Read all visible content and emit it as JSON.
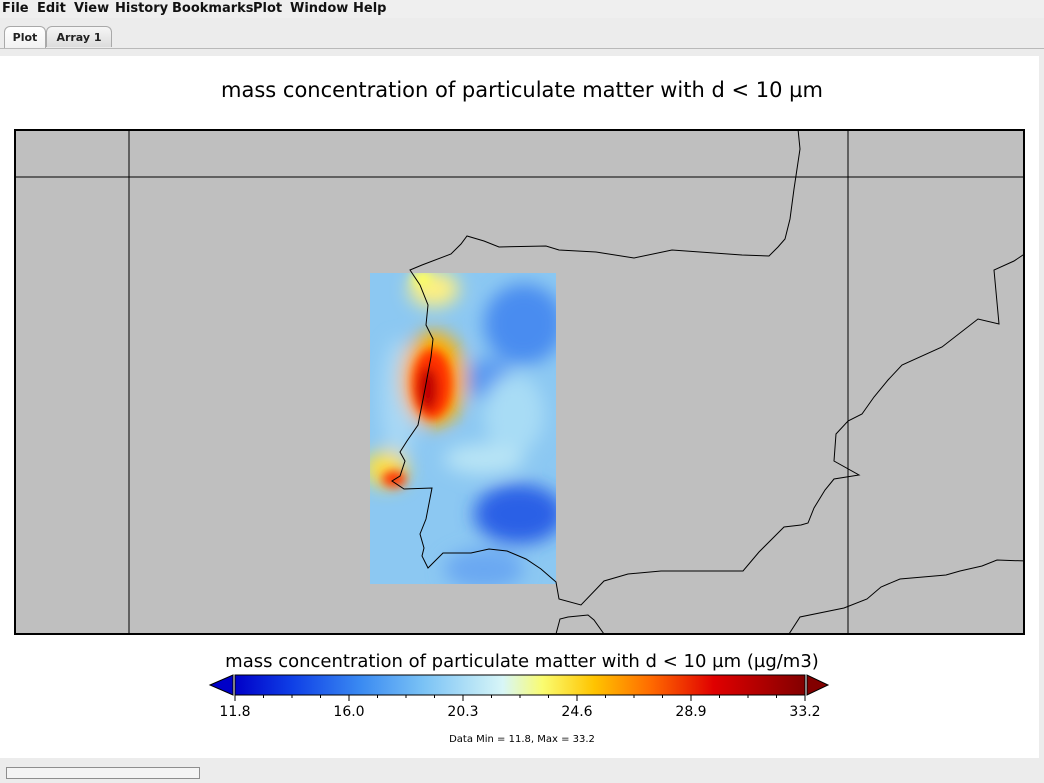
{
  "menubar": {
    "items": [
      "File",
      "Edit",
      "View",
      "History",
      "Bookmarks",
      "Plot",
      "Window",
      "Help"
    ]
  },
  "tabs": [
    {
      "label": "Plot",
      "active": true
    },
    {
      "label": "Array 1",
      "active": false
    }
  ],
  "plot": {
    "title": "mass concentration of particulate matter with d < 10 µm",
    "colorbar_title": "mass concentration of particulate matter with d < 10 µm (µg/m3)",
    "data_range_text": "Data Min = 11.8, Max = 33.2",
    "colors": {
      "land_background": "#bfbfbf",
      "coastline": "#000000",
      "colormap": [
        "#0000c8",
        "#1060f0",
        "#4aa0f5",
        "#a8dcf5",
        "#e8faf5",
        "#ffff40",
        "#ffb000",
        "#ff3000",
        "#d00000",
        "#820000"
      ]
    }
  },
  "chart_data": {
    "type": "heatmap",
    "title": "mass concentration of particulate matter with d < 10 µm",
    "colorbar": {
      "label": "mass concentration of particulate matter with d < 10 µm (µg/m3)",
      "ticks": [
        "11.8",
        "16.0",
        "20.3",
        "24.6",
        "28.9",
        "33.2"
      ],
      "min": 11.8,
      "max": 33.2,
      "extend": "both"
    },
    "data_min": 11.8,
    "data_max": 33.2,
    "hotspots": [
      {
        "region": "west-center",
        "value": 33.2
      },
      {
        "region": "south-west",
        "value": 30.0
      },
      {
        "region": "north-west",
        "value": 25.0
      }
    ],
    "background_value": 19.0,
    "grid": true
  },
  "status": {
    "progress": 0
  }
}
